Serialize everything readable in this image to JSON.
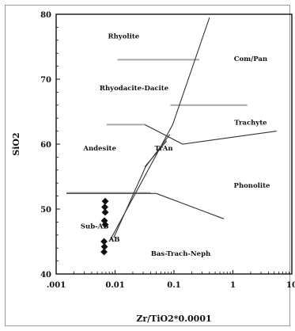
{
  "chart_data": {
    "type": "scatter",
    "xlabel": "Zr/TiO2*0.0001",
    "ylabel": "SiO2",
    "xscale": "log",
    "xlim": [
      0.001,
      10
    ],
    "ylim": [
      40,
      80
    ],
    "x_ticks": [
      {
        "value": 0.001,
        "label": ".001"
      },
      {
        "value": 0.01,
        "label": "0.01"
      },
      {
        "value": 0.1,
        "label": "0.1"
      },
      {
        "value": 1,
        "label": "1"
      },
      {
        "value": 10,
        "label": "10"
      }
    ],
    "y_ticks": [
      {
        "value": 40,
        "label": "40"
      },
      {
        "value": 50,
        "label": "50"
      },
      {
        "value": 60,
        "label": "60"
      },
      {
        "value": 70,
        "label": "70"
      },
      {
        "value": 80,
        "label": "80"
      }
    ],
    "field_labels": [
      {
        "text": "Rhyolite",
        "x": 0.014,
        "y": 76.3
      },
      {
        "text": "Com/Pan",
        "x": 2.0,
        "y": 72.8
      },
      {
        "text": "Rhyodacite-Dacite",
        "x": 0.021,
        "y": 68.3
      },
      {
        "text": "Trachyte",
        "x": 2.0,
        "y": 63.0
      },
      {
        "text": "Andesite",
        "x": 0.0055,
        "y": 59.0
      },
      {
        "text": "TrAn",
        "x": 0.067,
        "y": 59.0
      },
      {
        "text": "Phonolite",
        "x": 2.1,
        "y": 53.3
      },
      {
        "text": "Sub-AB",
        "x": 0.0045,
        "y": 47.0
      },
      {
        "text": "Bas-Trach-Neph",
        "x": 0.13,
        "y": 42.8
      },
      {
        "text": "AB",
        "x": 0.0097,
        "y": 45.0
      }
    ],
    "boundaries": [
      {
        "name": "gray-rhyolite",
        "points": [
          [
            0.011,
            73.0
          ],
          [
            0.27,
            73.0
          ]
        ],
        "color": "#a8a8a8"
      },
      {
        "name": "gray-trachyte",
        "points": [
          [
            0.087,
            66.0
          ],
          [
            1.75,
            66.0
          ]
        ],
        "color": "#a8a8a8"
      },
      {
        "name": "gray-andesite",
        "points": [
          [
            0.0072,
            63.0
          ],
          [
            0.032,
            63.0
          ]
        ],
        "color": "#a8a8a8"
      },
      {
        "name": "gray-subalkaline",
        "points": [
          [
            0.0015,
            52.5
          ],
          [
            0.04,
            52.5
          ]
        ],
        "color": "#a8a8a8"
      },
      {
        "name": "dark-subalkaline-top",
        "points": [
          [
            0.0015,
            52.4
          ],
          [
            0.05,
            52.4
          ]
        ],
        "color": "#333333"
      },
      {
        "name": "main-diagonal",
        "points": [
          [
            0.008,
            45.0
          ],
          [
            0.095,
            63.0
          ],
          [
            0.4,
            79.5
          ]
        ],
        "color": "#333333"
      },
      {
        "name": "andesite-tran-upper",
        "points": [
          [
            0.032,
            63.0
          ],
          [
            0.14,
            60.0
          ],
          [
            5.5,
            62.0
          ]
        ],
        "color": "#333333"
      },
      {
        "name": "andesite-tran-lower",
        "points": [
          [
            0.032,
            56.5
          ],
          [
            0.075,
            60.5
          ]
        ],
        "color": "#333333"
      },
      {
        "name": "tran-bas-divider",
        "points": [
          [
            0.05,
            52.4
          ],
          [
            0.7,
            48.5
          ]
        ],
        "color": "#333333"
      },
      {
        "name": "ab-inner-line",
        "points": [
          [
            0.0095,
            45.6
          ],
          [
            0.033,
            56.5
          ],
          [
            0.085,
            61.5
          ]
        ],
        "color": "#333333"
      }
    ],
    "points": [
      {
        "x": 0.0068,
        "y": 51.2
      },
      {
        "x": 0.0067,
        "y": 50.3
      },
      {
        "x": 0.0068,
        "y": 49.5
      },
      {
        "x": 0.0066,
        "y": 48.2
      },
      {
        "x": 0.0068,
        "y": 47.6
      },
      {
        "x": 0.0065,
        "y": 45.0
      },
      {
        "x": 0.0066,
        "y": 44.2
      },
      {
        "x": 0.0065,
        "y": 43.4
      }
    ],
    "marker_color": "#111111"
  }
}
